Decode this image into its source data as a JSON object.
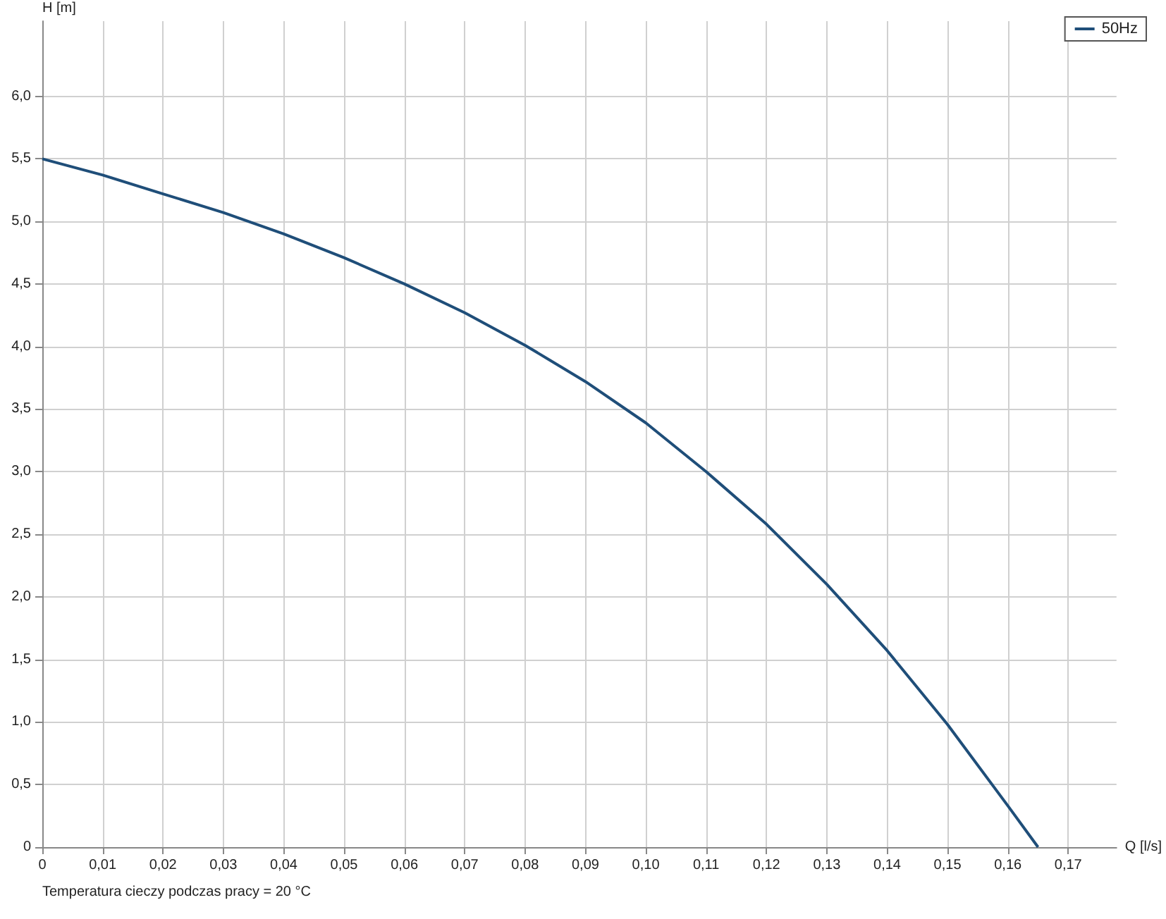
{
  "chart_data": {
    "type": "line",
    "xlabel": "Q [l/s]",
    "ylabel": "H [m]",
    "x": [
      0,
      0.01,
      0.02,
      0.03,
      0.04,
      0.05,
      0.06,
      0.07,
      0.08,
      0.09,
      0.1,
      0.11,
      0.12,
      0.13,
      0.14,
      0.15,
      0.16,
      0.165
    ],
    "series": [
      {
        "name": "50Hz",
        "color": "#1f4e79",
        "values": [
          5.5,
          5.37,
          5.22,
          5.07,
          4.9,
          4.71,
          4.5,
          4.27,
          4.01,
          3.72,
          3.39,
          3.0,
          2.58,
          2.1,
          1.57,
          0.98,
          0.33,
          0
        ]
      }
    ],
    "xlim": [
      0,
      0.178
    ],
    "ylim": [
      0,
      6.6
    ],
    "xticks": [
      0,
      {
        "value": 0.01,
        "label": "0,01"
      },
      {
        "value": 0.02,
        "label": "0,02"
      },
      {
        "value": 0.03,
        "label": "0,03"
      },
      {
        "value": 0.04,
        "label": "0,04"
      },
      {
        "value": 0.05,
        "label": "0,05"
      },
      {
        "value": 0.06,
        "label": "0,06"
      },
      {
        "value": 0.07,
        "label": "0,07"
      },
      {
        "value": 0.08,
        "label": "0,08"
      },
      {
        "value": 0.09,
        "label": "0,09"
      },
      {
        "value": 0.1,
        "label": "0,10"
      },
      {
        "value": 0.11,
        "label": "0,11"
      },
      {
        "value": 0.12,
        "label": "0,12"
      },
      {
        "value": 0.13,
        "label": "0,13"
      },
      {
        "value": 0.14,
        "label": "0,14"
      },
      {
        "value": 0.15,
        "label": "0,15"
      },
      {
        "value": 0.16,
        "label": "0,16"
      },
      {
        "value": 0.17,
        "label": "0,17"
      }
    ],
    "yticks": [
      0,
      {
        "value": 0.5,
        "label": "0,5"
      },
      {
        "value": 1,
        "label": "1,0"
      },
      {
        "value": 1.5,
        "label": "1,5"
      },
      {
        "value": 2,
        "label": "2,0"
      },
      {
        "value": 2.5,
        "label": "2,5"
      },
      {
        "value": 3,
        "label": "3,0"
      },
      {
        "value": 3.5,
        "label": "3,5"
      },
      {
        "value": 4,
        "label": "4,0"
      },
      {
        "value": 4.5,
        "label": "4,5"
      },
      {
        "value": 5,
        "label": "5,0"
      },
      {
        "value": 5.5,
        "label": "5,5"
      },
      {
        "value": 6,
        "label": "6,0"
      }
    ],
    "grid": true,
    "legend": "top right",
    "marker": "none",
    "line_style": "solid",
    "annotations": [
      "Temperatura cieczy podczas pracy = 20 °C"
    ]
  }
}
